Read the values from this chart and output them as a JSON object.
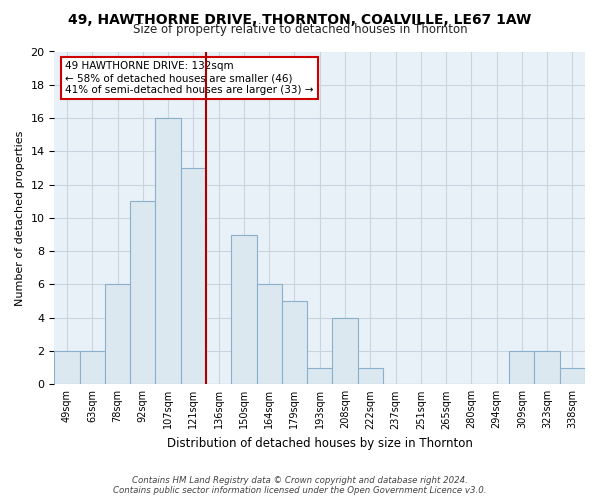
{
  "title1": "49, HAWTHORNE DRIVE, THORNTON, COALVILLE, LE67 1AW",
  "title2": "Size of property relative to detached houses in Thornton",
  "xlabel": "Distribution of detached houses by size in Thornton",
  "ylabel": "Number of detached properties",
  "bin_labels": [
    "49sqm",
    "63sqm",
    "78sqm",
    "92sqm",
    "107sqm",
    "121sqm",
    "136sqm",
    "150sqm",
    "164sqm",
    "179sqm",
    "193sqm",
    "208sqm",
    "222sqm",
    "237sqm",
    "251sqm",
    "265sqm",
    "280sqm",
    "294sqm",
    "309sqm",
    "323sqm",
    "338sqm"
  ],
  "bar_heights": [
    2,
    2,
    6,
    11,
    16,
    13,
    0,
    9,
    6,
    5,
    1,
    4,
    1,
    0,
    0,
    0,
    0,
    0,
    2,
    2,
    1
  ],
  "bar_color": "#dce8f0",
  "bar_edge_color": "#8ab0cc",
  "highlight_line_color": "#aa0000",
  "annotation_lines": [
    "49 HAWTHORNE DRIVE: 132sqm",
    "← 58% of detached houses are smaller (46)",
    "41% of semi-detached houses are larger (33) →"
  ],
  "ylim": [
    0,
    20
  ],
  "yticks": [
    0,
    2,
    4,
    6,
    8,
    10,
    12,
    14,
    16,
    18,
    20
  ],
  "footer1": "Contains HM Land Registry data © Crown copyright and database right 2024.",
  "footer2": "Contains public sector information licensed under the Open Government Licence v3.0.",
  "plot_bg_color": "#e8f0f8",
  "fig_bg_color": "#ffffff",
  "grid_color": "#c8d4e0"
}
